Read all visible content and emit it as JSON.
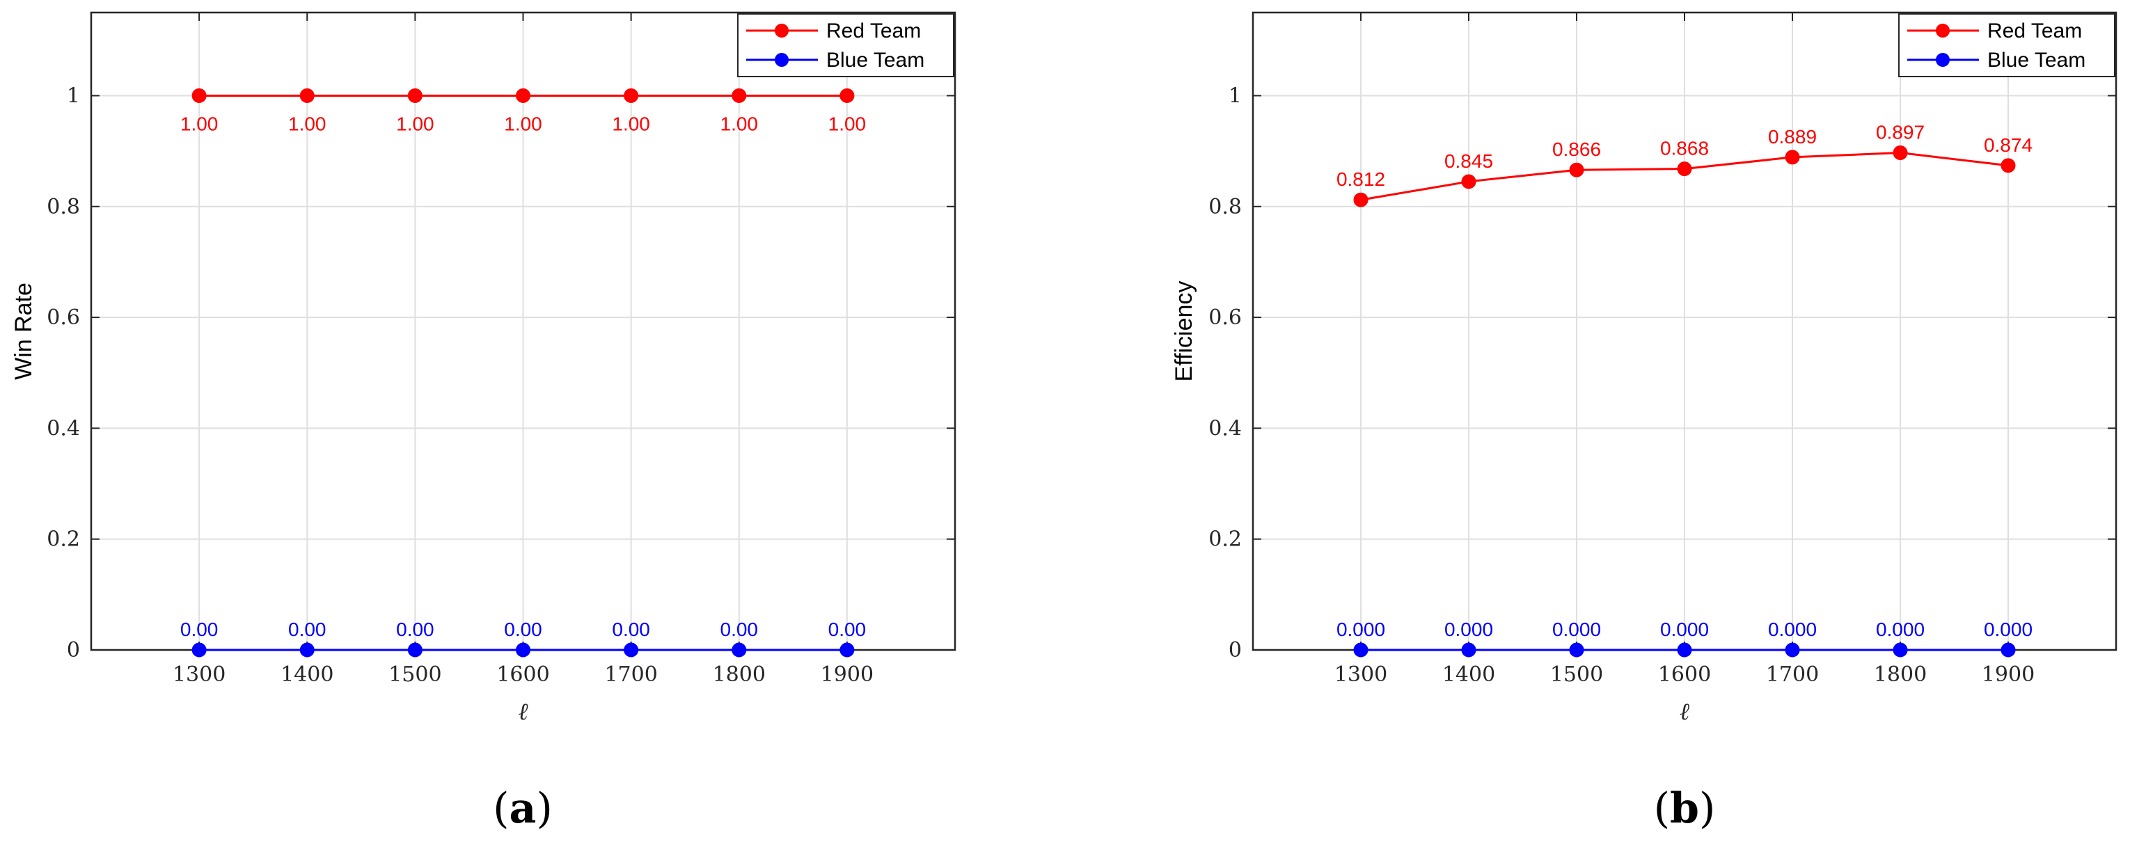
{
  "chart_data": [
    {
      "type": "line",
      "panel_label": "a",
      "title": "",
      "xlabel": "ℓ",
      "ylabel": "Win Rate",
      "x": [
        1300,
        1400,
        1500,
        1600,
        1700,
        1800,
        1900
      ],
      "xlim": [
        1200,
        2000
      ],
      "ylim": [
        0,
        1.15
      ],
      "xticks": [
        "1300",
        "1400",
        "1500",
        "1600",
        "1700",
        "1800",
        "1900"
      ],
      "yticks": [
        0,
        0.2,
        0.4,
        0.6,
        0.8,
        1
      ],
      "ytick_labels": [
        "0",
        "0.2",
        "0.4",
        "0.6",
        "0.8",
        "1"
      ],
      "grid": true,
      "legend_position": "top-right",
      "series": [
        {
          "name": "Red Team",
          "color": "#ff0000",
          "values": [
            1,
            1,
            1,
            1,
            1,
            1,
            1
          ],
          "labels": [
            "1.00",
            "1.00",
            "1.00",
            "1.00",
            "1.00",
            "1.00",
            "1.00"
          ],
          "label_position": "below"
        },
        {
          "name": "Blue Team",
          "color": "#0000ff",
          "values": [
            0,
            0,
            0,
            0,
            0,
            0,
            0
          ],
          "labels": [
            "0.00",
            "0.00",
            "0.00",
            "0.00",
            "0.00",
            "0.00",
            "0.00"
          ],
          "label_position": "above"
        }
      ]
    },
    {
      "type": "line",
      "panel_label": "b",
      "title": "",
      "xlabel": "ℓ",
      "ylabel": "Efficiency",
      "x": [
        1300,
        1400,
        1500,
        1600,
        1700,
        1800,
        1900
      ],
      "xlim": [
        1200,
        2000
      ],
      "ylim": [
        0,
        1.15
      ],
      "xticks": [
        "1300",
        "1400",
        "1500",
        "1600",
        "1700",
        "1800",
        "1900"
      ],
      "yticks": [
        0,
        0.2,
        0.4,
        0.6,
        0.8,
        1
      ],
      "ytick_labels": [
        "0",
        "0.2",
        "0.4",
        "0.6",
        "0.8",
        "1"
      ],
      "grid": true,
      "legend_position": "top-right",
      "series": [
        {
          "name": "Red Team",
          "color": "#ff0000",
          "values": [
            0.812,
            0.845,
            0.866,
            0.868,
            0.889,
            0.897,
            0.874
          ],
          "labels": [
            "0.812",
            "0.845",
            "0.866",
            "0.868",
            "0.889",
            "0.897",
            "0.874"
          ],
          "label_position": "above"
        },
        {
          "name": "Blue Team",
          "color": "#0000ff",
          "values": [
            0,
            0,
            0,
            0,
            0,
            0,
            0
          ],
          "labels": [
            "0.000",
            "0.000",
            "0.000",
            "0.000",
            "0.000",
            "0.000",
            "0.000"
          ],
          "label_position": "above"
        }
      ]
    }
  ]
}
